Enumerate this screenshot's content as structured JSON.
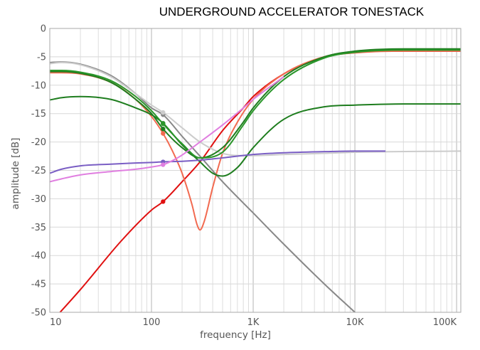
{
  "chart_data": {
    "type": "line",
    "title": "UNDERGROUND ACCELERATOR TONESTACK",
    "xlabel": "frequency [Hz]",
    "ylabel": "amplitude [dB]",
    "x_scale": "log",
    "xlim": [
      10,
      110000
    ],
    "ylim": [
      -50,
      0
    ],
    "x_ticks": [
      10,
      100,
      1000,
      10000,
      100000
    ],
    "x_tick_labels": [
      "10",
      "100",
      "1K",
      "10K",
      "100K"
    ],
    "y_ticks": [
      0,
      -5,
      -10,
      -15,
      -20,
      -25,
      -30,
      -35,
      -40,
      -45,
      -50
    ],
    "y_tick_labels": [
      "0",
      "-5",
      "-10",
      "-15",
      "-20",
      "-25",
      "-30",
      "-35",
      "-40",
      "-45",
      "-50"
    ],
    "grid": true,
    "marker_x": 130,
    "series": [
      {
        "color": "#e01010",
        "x": [
          10,
          20,
          50,
          100,
          130,
          200,
          300,
          500,
          800,
          1000,
          2000,
          5000,
          10000,
          20000,
          50000,
          110000
        ],
        "y": [
          -52,
          -46,
          -37.5,
          -32,
          -30.5,
          -27,
          -23.5,
          -18,
          -14,
          -12,
          -8,
          -5,
          -4.2,
          -4,
          -4,
          -4
        ]
      },
      {
        "color": "#f26a50",
        "x": [
          10,
          13,
          20,
          40,
          70,
          100,
          130,
          160,
          200,
          250,
          280,
          300,
          330,
          400,
          500,
          700,
          1000,
          2000,
          5000,
          10000,
          30000,
          110000
        ],
        "y": [
          -7.8,
          -7.8,
          -8,
          -9.5,
          -12.5,
          -15.5,
          -18.5,
          -21.5,
          -25.5,
          -31,
          -34.5,
          -35.5,
          -34,
          -28,
          -22,
          -16.5,
          -12.5,
          -8,
          -5,
          -4.3,
          -4,
          -4
        ]
      },
      {
        "color": "#888888",
        "x": [
          10,
          13,
          20,
          40,
          70,
          100,
          130,
          200,
          300,
          500,
          1000,
          2000,
          5000,
          10000,
          20000
        ],
        "y": [
          -6,
          -5.9,
          -6.3,
          -8.3,
          -11.5,
          -14,
          -15.2,
          -19,
          -22.5,
          -27,
          -32.5,
          -38,
          -45,
          -50,
          -55
        ]
      },
      {
        "color": "#cccccc",
        "x": [
          10,
          13,
          20,
          40,
          70,
          100,
          130,
          200,
          300,
          500,
          800,
          1000,
          2000,
          5000,
          10000,
          110000
        ],
        "y": [
          -6.2,
          -6,
          -6.4,
          -8.5,
          -11.5,
          -13.5,
          -14.8,
          -17.5,
          -20,
          -22,
          -22.4,
          -22.4,
          -22.2,
          -22,
          -21.8,
          -21.6
        ]
      },
      {
        "color": "#1e7d1e",
        "x": [
          10,
          13,
          20,
          40,
          70,
          100,
          130,
          200,
          300,
          400,
          500,
          700,
          1000,
          2000,
          5000,
          10000,
          30000,
          110000
        ],
        "y": [
          -12.6,
          -12.2,
          -12,
          -12.5,
          -14,
          -15.2,
          -16.7,
          -20.5,
          -23.5,
          -25.5,
          -26,
          -24.5,
          -21,
          -16,
          -13.8,
          -13.5,
          -13.3,
          -13.3
        ]
      },
      {
        "color": "#1e7d1e",
        "x": [
          10,
          13,
          20,
          40,
          70,
          100,
          130,
          200,
          300,
          500,
          800,
          1000,
          2000,
          5000,
          10000,
          30000,
          110000
        ],
        "y": [
          -7.6,
          -7.6,
          -7.9,
          -9.5,
          -12.5,
          -15,
          -17.7,
          -21,
          -22.8,
          -21,
          -16.5,
          -14,
          -8.5,
          -5,
          -4,
          -3.6,
          -3.6
        ]
      },
      {
        "color": "#2a962a",
        "x": [
          10,
          13,
          20,
          40,
          70,
          100,
          130,
          200,
          300,
          500,
          800,
          1000,
          2000,
          5000,
          10000,
          30000,
          110000
        ],
        "y": [
          -7.4,
          -7.4,
          -7.7,
          -9.2,
          -12,
          -14.5,
          -16.8,
          -20.3,
          -22.8,
          -21.8,
          -17,
          -14.5,
          -9,
          -5.2,
          -4.2,
          -3.8,
          -3.8
        ]
      },
      {
        "color": "#7a5ec4",
        "x": [
          10,
          13,
          20,
          40,
          70,
          100,
          130,
          200,
          300,
          500,
          1000,
          2000,
          5000,
          10000,
          20000
        ],
        "y": [
          -25.5,
          -24.8,
          -24.2,
          -23.9,
          -23.7,
          -23.6,
          -23.5,
          -23.4,
          -23.2,
          -22.8,
          -22.2,
          -21.9,
          -21.7,
          -21.6,
          -21.6
        ]
      },
      {
        "color": "#e07fe0",
        "x": [
          10,
          13,
          20,
          40,
          70,
          100,
          130,
          160,
          200,
          300,
          500,
          800,
          1000,
          2000
        ],
        "y": [
          -27,
          -26.5,
          -25.8,
          -25.2,
          -24.8,
          -24.4,
          -24,
          -23.3,
          -22.3,
          -20,
          -17,
          -14,
          -12.5,
          -8.5
        ]
      }
    ]
  }
}
